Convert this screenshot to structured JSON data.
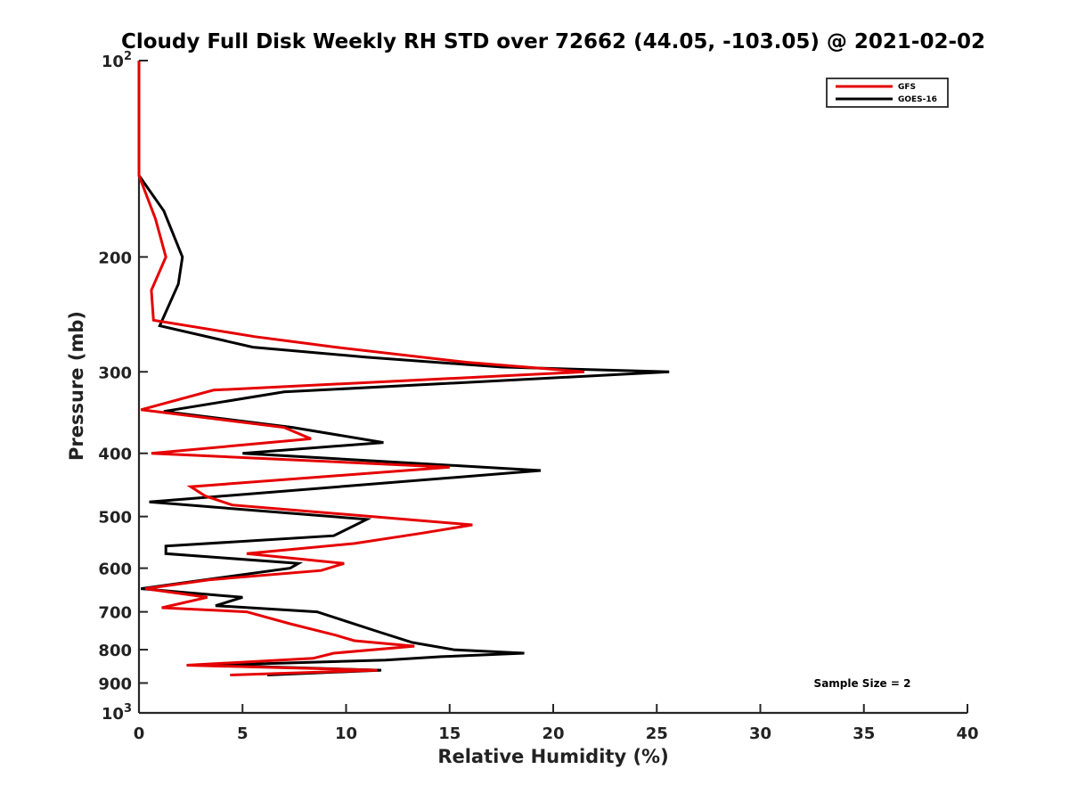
{
  "chart_data": {
    "type": "line",
    "title": "Cloudy Full Disk Weekly RH STD over 72662 (44.05, -103.05) @ 2021-02-02",
    "xlabel": "Relative Humidity (%)",
    "ylabel": "Pressure (mb)",
    "xlim": [
      0,
      40
    ],
    "ylim": [
      100,
      1000
    ],
    "y_scale": "log",
    "y_reversed": true,
    "x_ticks": [
      "0",
      "5",
      "10",
      "15",
      "20",
      "25",
      "30",
      "35",
      "40"
    ],
    "y_ticks": [
      {
        "value": 100,
        "base": "10",
        "exp": "2"
      },
      {
        "value": 200,
        "label": "200"
      },
      {
        "value": 300,
        "label": "300"
      },
      {
        "value": 400,
        "label": "400"
      },
      {
        "value": 500,
        "label": "500"
      },
      {
        "value": 600,
        "label": "600"
      },
      {
        "value": 700,
        "label": "700"
      },
      {
        "value": 800,
        "label": "800"
      },
      {
        "value": 900,
        "label": "900"
      },
      {
        "value": 1000,
        "base": "10",
        "exp": "3"
      }
    ],
    "grid": false,
    "legend_position": "top-right",
    "annotation": "Sample Size = 2",
    "series": [
      {
        "name": "GFS",
        "color": "#e60000",
        "points": [
          [
            0,
            100
          ],
          [
            0,
            150
          ],
          [
            0.8,
            175
          ],
          [
            1.3,
            200
          ],
          [
            0.6,
            225
          ],
          [
            0.7,
            250
          ],
          [
            5.6,
            265
          ],
          [
            9.5,
            275
          ],
          [
            15.8,
            290
          ],
          [
            21.5,
            300
          ],
          [
            3.6,
            320
          ],
          [
            0.1,
            343
          ],
          [
            7.0,
            365
          ],
          [
            8.3,
            380
          ],
          [
            0.6,
            400
          ],
          [
            15.0,
            420
          ],
          [
            2.5,
            450
          ],
          [
            3.2,
            465
          ],
          [
            4.5,
            480
          ],
          [
            16.1,
            515
          ],
          [
            13.7,
            530
          ],
          [
            10.4,
            550
          ],
          [
            5.2,
            570
          ],
          [
            9.9,
            590
          ],
          [
            8.8,
            605
          ],
          [
            3.4,
            625
          ],
          [
            0.3,
            645
          ],
          [
            3.3,
            665
          ],
          [
            1.1,
            690
          ],
          [
            5.2,
            700
          ],
          [
            7.3,
            730
          ],
          [
            9.5,
            760
          ],
          [
            10.4,
            775
          ],
          [
            13.3,
            790
          ],
          [
            9.4,
            810
          ],
          [
            8.4,
            825
          ],
          [
            2.3,
            845
          ],
          [
            11.5,
            860
          ],
          [
            4.4,
            875
          ]
        ]
      },
      {
        "name": "GOES-16",
        "color": "#000000",
        "points": [
          [
            0,
            100
          ],
          [
            0,
            150
          ],
          [
            1.2,
            170
          ],
          [
            2.1,
            200
          ],
          [
            1.9,
            220
          ],
          [
            1.0,
            255
          ],
          [
            5.5,
            275
          ],
          [
            11.0,
            285
          ],
          [
            17.5,
            295
          ],
          [
            25.6,
            300
          ],
          [
            7.0,
            322
          ],
          [
            1.2,
            345
          ],
          [
            7.4,
            365
          ],
          [
            11.8,
            385
          ],
          [
            5.0,
            400
          ],
          [
            19.4,
            425
          ],
          [
            0.5,
            475
          ],
          [
            11.0,
            505
          ],
          [
            9.4,
            535
          ],
          [
            1.3,
            555
          ],
          [
            1.3,
            570
          ],
          [
            7.7,
            590
          ],
          [
            7.3,
            600
          ],
          [
            3.2,
            625
          ],
          [
            0.1,
            645
          ],
          [
            5.0,
            665
          ],
          [
            3.7,
            685
          ],
          [
            8.6,
            700
          ],
          [
            11.5,
            750
          ],
          [
            13.2,
            780
          ],
          [
            15.2,
            800
          ],
          [
            18.6,
            810
          ],
          [
            14.6,
            820
          ],
          [
            11.9,
            830
          ],
          [
            3.4,
            845
          ],
          [
            11.7,
            860
          ],
          [
            6.2,
            875
          ]
        ]
      }
    ]
  }
}
